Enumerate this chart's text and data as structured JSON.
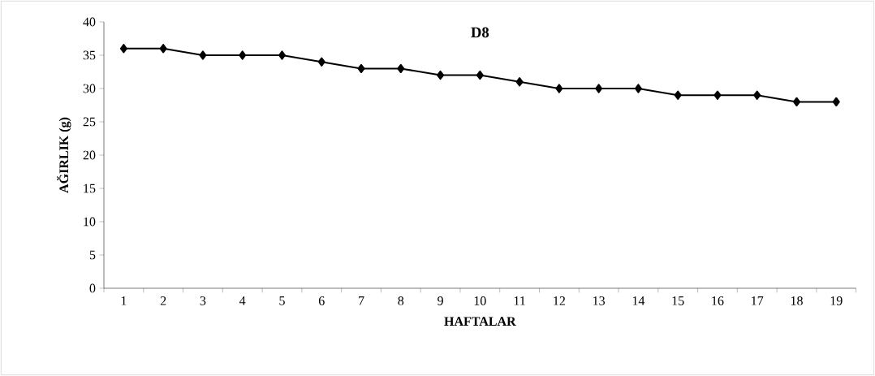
{
  "chart_data": {
    "type": "line",
    "title": "D8",
    "xlabel": "HAFTALAR",
    "ylabel": "AĞIRLIK (g)",
    "categories": [
      "1",
      "2",
      "3",
      "4",
      "5",
      "6",
      "7",
      "8",
      "9",
      "10",
      "11",
      "12",
      "13",
      "14",
      "15",
      "16",
      "17",
      "18",
      "19"
    ],
    "series": [
      {
        "color": "#000000",
        "values": [
          36,
          36,
          35,
          35,
          35,
          34,
          33,
          33,
          32,
          32,
          31,
          30,
          30,
          30,
          29,
          29,
          29,
          28,
          28
        ]
      }
    ],
    "ylim": [
      0,
      40
    ],
    "yticks": [
      0,
      5,
      10,
      15,
      20,
      25,
      30,
      35,
      40
    ],
    "grid": false,
    "marker": "diamond",
    "line_style": "solid"
  }
}
